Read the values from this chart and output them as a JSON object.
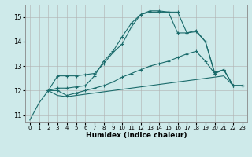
{
  "xlabel": "Humidex (Indice chaleur)",
  "background_color": "#ceeaea",
  "grid_color": "#b0b0b0",
  "line_color": "#1a6b6b",
  "xlim": [
    -0.5,
    23.5
  ],
  "ylim": [
    10.7,
    15.5
  ],
  "yticks": [
    11,
    12,
    13,
    14,
    15
  ],
  "xticks": [
    0,
    1,
    2,
    3,
    4,
    5,
    6,
    7,
    8,
    9,
    10,
    11,
    12,
    13,
    14,
    15,
    16,
    17,
    18,
    19,
    20,
    21,
    22,
    23
  ],
  "line1_x": [
    0,
    1,
    2,
    3,
    4,
    5,
    6,
    7,
    8,
    9,
    10,
    11,
    12,
    13,
    14,
    15,
    16,
    17,
    18,
    19,
    20,
    21,
    22,
    23
  ],
  "line1_y": [
    10.8,
    11.5,
    12.0,
    11.8,
    11.75,
    11.8,
    11.85,
    11.9,
    11.95,
    12.0,
    12.05,
    12.1,
    12.15,
    12.2,
    12.25,
    12.3,
    12.35,
    12.4,
    12.45,
    12.5,
    12.55,
    12.6,
    12.2,
    12.2
  ],
  "line2_x": [
    2,
    3,
    4,
    5,
    6,
    7,
    8,
    9,
    10,
    11,
    12,
    13,
    14,
    15,
    16,
    17,
    18,
    19,
    20,
    21,
    22,
    23
  ],
  "line2_y": [
    12.0,
    12.0,
    11.8,
    11.9,
    12.0,
    12.1,
    12.2,
    12.35,
    12.55,
    12.7,
    12.85,
    13.0,
    13.1,
    13.2,
    13.35,
    13.5,
    13.6,
    13.2,
    12.7,
    12.85,
    12.2,
    12.2
  ],
  "line3_x": [
    2,
    3,
    4,
    5,
    6,
    7,
    8,
    9,
    10,
    11,
    12,
    13,
    14,
    15,
    16,
    17,
    18,
    19,
    20,
    21,
    22,
    23
  ],
  "line3_y": [
    12.0,
    12.6,
    12.6,
    12.6,
    12.65,
    12.7,
    13.1,
    13.55,
    13.9,
    14.6,
    15.1,
    15.2,
    15.2,
    15.2,
    14.35,
    14.35,
    14.4,
    14.0,
    12.7,
    12.85,
    12.2,
    12.2
  ],
  "line4_x": [
    2,
    3,
    4,
    5,
    6,
    7,
    8,
    9,
    10,
    11,
    12,
    13,
    14,
    15,
    16,
    17,
    18,
    19,
    20,
    21,
    22,
    23
  ],
  "line4_y": [
    12.0,
    12.1,
    12.1,
    12.15,
    12.2,
    12.6,
    13.2,
    13.6,
    14.2,
    14.75,
    15.1,
    15.25,
    15.25,
    15.2,
    15.2,
    14.35,
    14.45,
    14.0,
    12.75,
    12.85,
    12.2,
    12.2
  ]
}
